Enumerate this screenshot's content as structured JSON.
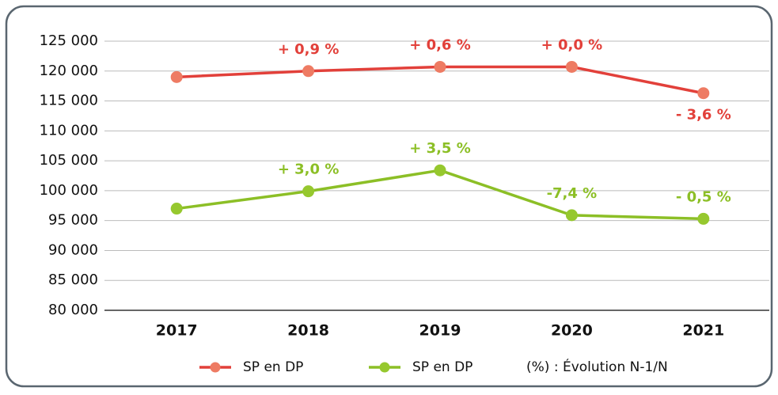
{
  "chart_data": {
    "type": "line",
    "categories": [
      "2017",
      "2018",
      "2019",
      "2020",
      "2021"
    ],
    "series": [
      {
        "name": "SP en DP",
        "color": "#e2403a",
        "marker_color": "#ee7b63",
        "values": [
          119000,
          120000,
          120700,
          120700,
          116300
        ],
        "annotations": [
          null,
          "+ 0,9 %",
          "+ 0,6 %",
          "+ 0,0 %",
          "- 3,6 %"
        ]
      },
      {
        "name": "SP en DP",
        "color": "#8cbf26",
        "marker_color": "#96c82e",
        "values": [
          97000,
          99900,
          103400,
          95900,
          95300
        ],
        "annotations": [
          null,
          "+ 3,0 %",
          "+ 3,5 %",
          "-7,4 %",
          "- 0,5 %"
        ]
      }
    ],
    "legend_note": "(%) : Évolution N-1/N",
    "ylim": [
      80000,
      125000
    ],
    "yticks": [
      {
        "value": 80000,
        "label": "80 000"
      },
      {
        "value": 85000,
        "label": "85 000"
      },
      {
        "value": 90000,
        "label": "90 000"
      },
      {
        "value": 95000,
        "label": "95 000"
      },
      {
        "value": 100000,
        "label": "100 000"
      },
      {
        "value": 105000,
        "label": "105 000"
      },
      {
        "value": 110000,
        "label": "110 000"
      },
      {
        "value": 115000,
        "label": "115 000"
      },
      {
        "value": 120000,
        "label": "120 000"
      },
      {
        "value": 125000,
        "label": "125 000"
      }
    ],
    "grid": true
  }
}
